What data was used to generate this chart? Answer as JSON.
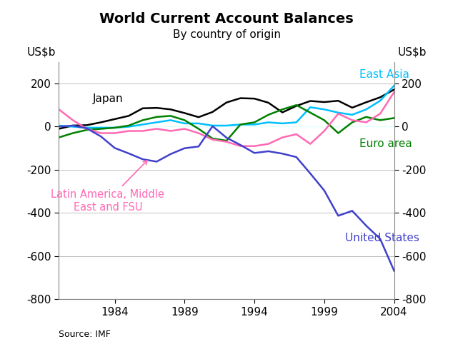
{
  "title": "World Current Account Balances",
  "subtitle": "By country of origin",
  "ylabel_left": "US$b",
  "ylabel_right": "US$b",
  "source": "Source: IMF",
  "ylim": [
    -800,
    300
  ],
  "yticks": [
    -800,
    -600,
    -400,
    -200,
    0,
    200
  ],
  "years": [
    1980,
    1981,
    1982,
    1983,
    1984,
    1985,
    1986,
    1987,
    1988,
    1989,
    1990,
    1991,
    1992,
    1993,
    1994,
    1995,
    1996,
    1997,
    1998,
    1999,
    2000,
    2001,
    2002,
    2003,
    2004
  ],
  "xticks": [
    1984,
    1989,
    1994,
    1999,
    2004
  ],
  "series": {
    "Japan": {
      "color": "#000000",
      "linewidth": 1.8,
      "data": [
        -10,
        5,
        7,
        20,
        35,
        50,
        85,
        87,
        80,
        63,
        44,
        68,
        112,
        132,
        130,
        111,
        66,
        96,
        119,
        114,
        120,
        88,
        113,
        136,
        172
      ]
    },
    "East Asia": {
      "color": "#00bfff",
      "linewidth": 1.8,
      "data": [
        5,
        0,
        -5,
        -5,
        -5,
        0,
        10,
        20,
        30,
        15,
        15,
        5,
        5,
        10,
        10,
        20,
        15,
        20,
        90,
        80,
        65,
        55,
        80,
        120,
        190
      ]
    },
    "Euro area": {
      "color": "#008000",
      "linewidth": 1.8,
      "data": [
        -50,
        -30,
        -15,
        -10,
        -5,
        5,
        30,
        45,
        50,
        30,
        -10,
        -55,
        -65,
        10,
        20,
        55,
        80,
        100,
        65,
        30,
        -30,
        20,
        45,
        30,
        40
      ]
    },
    "Latin America, Middle East and FSU": {
      "color": "#ff69b4",
      "linewidth": 1.8,
      "data": [
        80,
        30,
        -10,
        -30,
        -30,
        -20,
        -20,
        -10,
        -20,
        -10,
        -30,
        -60,
        -70,
        -90,
        -90,
        -80,
        -50,
        -35,
        -80,
        -20,
        60,
        30,
        20,
        60,
        160
      ]
    },
    "United States": {
      "color": "#4040cc",
      "linewidth": 1.8,
      "data": [
        0,
        5,
        -8,
        -45,
        -99,
        -124,
        -151,
        -162,
        -127,
        -100,
        -92,
        2,
        -51,
        -85,
        -122,
        -114,
        -125,
        -141,
        -217,
        -296,
        -413,
        -390,
        -459,
        -520,
        -668
      ]
    }
  }
}
